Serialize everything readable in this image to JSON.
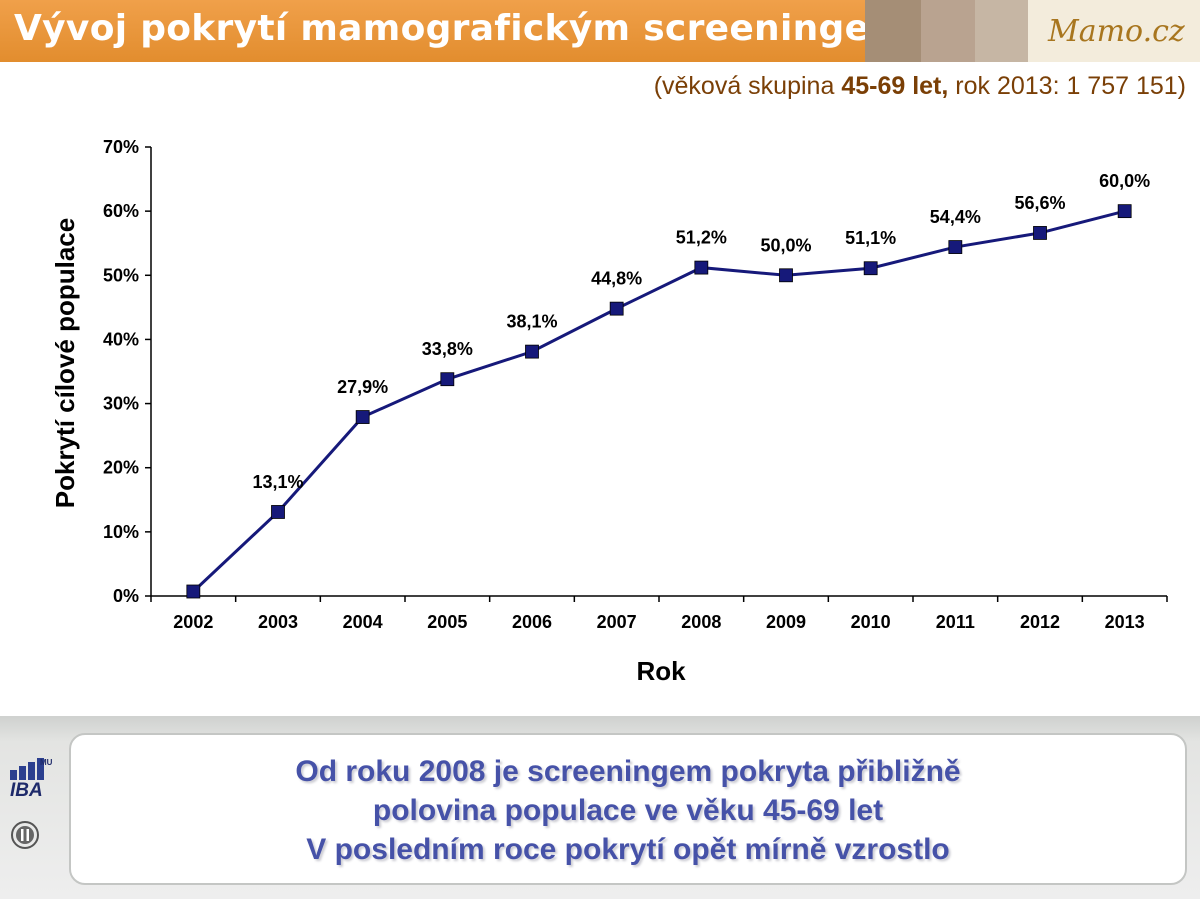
{
  "header": {
    "title": "Vývoj pokrytí mamografickým screeningem",
    "logo_text": "Mamo.cz",
    "strip_colors": [
      "#a58e76",
      "#b9a390",
      "#c6b6a4",
      "#d6cab9"
    ]
  },
  "subtitle": {
    "prefix": "(věková skupina ",
    "bold": "45-69 let,",
    "suffix": " rok 2013: 1 757 151)"
  },
  "chart_data": {
    "type": "line",
    "title": "",
    "xlabel": "Rok",
    "ylabel": "Pokrytí cílové populace",
    "categories": [
      "2002",
      "2003",
      "2004",
      "2005",
      "2006",
      "2007",
      "2008",
      "2009",
      "2010",
      "2011",
      "2012",
      "2013"
    ],
    "series": [
      {
        "values": [
          0.7,
          13.1,
          27.9,
          33.8,
          38.1,
          44.8,
          51.2,
          50.0,
          51.1,
          54.4,
          56.6,
          60.0
        ],
        "labels": [
          "",
          "13,1%",
          "27,9%",
          "33,8%",
          "38,1%",
          "44,8%",
          "51,2%",
          "50,0%",
          "51,1%",
          "54,4%",
          "56,6%",
          "60,0%"
        ],
        "color": "#16197a"
      }
    ],
    "ylim": [
      0,
      70
    ],
    "yticks": [
      0,
      10,
      20,
      30,
      40,
      50,
      60,
      70
    ],
    "ytick_labels": [
      "0%",
      "10%",
      "20%",
      "30%",
      "40%",
      "50%",
      "60%",
      "70%"
    ],
    "grid": false,
    "legend": "none"
  },
  "footer": {
    "lines": [
      "Od roku 2008 je screeningem pokryta přibližně",
      "polovina populace ve věku 45-69 let",
      "V posledním roce pokrytí opět mírně vzrostlo"
    ],
    "logo_iba": "IBA",
    "logo_mu": "MU"
  },
  "colors": {
    "header_orange": "#e8962f",
    "footer_text": "#4652a8",
    "series_line": "#16197a"
  }
}
